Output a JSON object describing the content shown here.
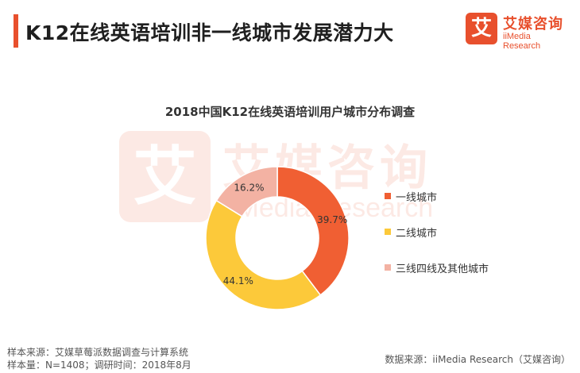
{
  "header": {
    "title": "K12在线英语培训非一线城市发展潜力大",
    "accent_color": "#e8502d"
  },
  "logo": {
    "icon": "ai-logo-icon",
    "mark": "艾",
    "name_cn": "艾媒咨询",
    "name_en": "iiMedia Research"
  },
  "watermark": {
    "mark": "艾",
    "name_cn": "艾媒咨询",
    "name_en": "iMedia Research"
  },
  "chart_data": {
    "type": "pie",
    "title": "2018中国K12在线英语培训用户城市分布调查",
    "donut": true,
    "labels": [
      "一线城市",
      "二线城市",
      "三线四线及其他城市"
    ],
    "values": [
      39.7,
      44.1,
      16.2
    ],
    "value_labels": [
      "39.7%",
      "44.1%",
      "16.2%"
    ],
    "colors": [
      "#f05f33",
      "#fcc93a",
      "#f3b2a3"
    ],
    "legend_position": "right"
  },
  "footer": {
    "source_line": "样本来源：艾媒草莓派数据调查与计算系统",
    "sample_line": "样本量：N=1408；调研时间：2018年8月",
    "data_source": "数据来源：iiMedia Research（艾媒咨询）"
  }
}
